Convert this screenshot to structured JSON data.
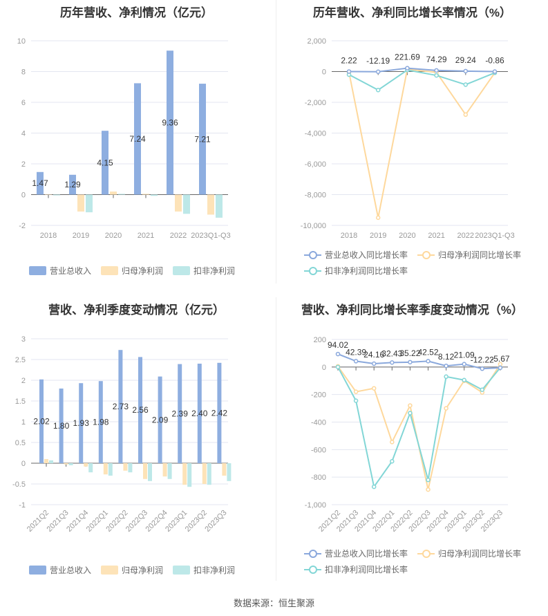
{
  "colors": {
    "revenue": "#8eaee0",
    "net": "#fde3b8",
    "deducted": "#bde8e8",
    "revenue_line": "#8aa8dc",
    "net_line": "#fed89c",
    "deducted_line": "#82d6d6"
  },
  "chart_data": [
    {
      "id": "annual",
      "type": "bar",
      "title": "历年营收、净利情况（亿元）",
      "categories": [
        "2018",
        "2019",
        "2020",
        "2021",
        "2022",
        "2023Q1-Q3"
      ],
      "ylim": [
        -2,
        10
      ],
      "yticks": [
        -2,
        0,
        2,
        4,
        6,
        8,
        10
      ],
      "series": [
        {
          "name": "营业总收入",
          "values": [
            1.47,
            1.29,
            4.15,
            7.24,
            9.36,
            7.21
          ],
          "labels": [
            "1.47",
            "1.29",
            "4.15",
            "7.24",
            "9.36",
            "7.21"
          ]
        },
        {
          "name": "归母净利润",
          "values": [
            0.02,
            -1.1,
            0.2,
            0.05,
            -1.1,
            -1.3
          ]
        },
        {
          "name": "扣非净利润",
          "values": [
            -0.05,
            -1.15,
            0.05,
            -0.08,
            -1.25,
            -1.5
          ]
        }
      ]
    },
    {
      "id": "annual_growth",
      "type": "line",
      "title": "历年营收、净利同比增长率情况（%）",
      "categories": [
        "2018",
        "2019",
        "2020",
        "2021",
        "2022",
        "2023Q1-Q3"
      ],
      "ylim": [
        -10000,
        2000
      ],
      "yticks": [
        -10000,
        -8000,
        -6000,
        -4000,
        -2000,
        0,
        2000
      ],
      "ytick_labels": [
        "-10,000",
        "-8,000",
        "-6,000",
        "-4,000",
        "-2,000",
        "0",
        "2,000"
      ],
      "series": [
        {
          "name": "营业总收入同比增长率",
          "values": [
            2.22,
            -12.19,
            221.69,
            74.29,
            29.24,
            -0.86
          ],
          "labels": [
            "2.22",
            "-12.19",
            "221.69",
            "74.29",
            "29.24",
            "-0.86"
          ]
        },
        {
          "name": "归母净利润同比增长率",
          "values": [
            -50,
            -9500,
            150,
            -50,
            -2800,
            -80
          ]
        },
        {
          "name": "扣非净利润同比增长率",
          "values": [
            -200,
            -1200,
            100,
            -250,
            -850,
            -80
          ]
        }
      ]
    },
    {
      "id": "quarterly",
      "type": "bar",
      "title": "营收、净利季度变动情况（亿元）",
      "categories": [
        "2021Q2",
        "2021Q3",
        "2021Q4",
        "2022Q1",
        "2022Q2",
        "2022Q3",
        "2022Q4",
        "2023Q1",
        "2023Q2",
        "2023Q3"
      ],
      "ylim": [
        -1,
        3
      ],
      "yticks": [
        -1,
        -0.5,
        0,
        0.5,
        1,
        1.5,
        2,
        2.5,
        3
      ],
      "ytick_labels": [
        "-1",
        "-0.5",
        "0",
        "0.5",
        "1",
        "1.5",
        "2",
        "2.5",
        "3"
      ],
      "series": [
        {
          "name": "营业总收入",
          "values": [
            2.02,
            1.8,
            1.93,
            1.98,
            2.73,
            2.56,
            2.09,
            2.39,
            2.4,
            2.42
          ],
          "labels": [
            "2.02",
            "1.80",
            "1.93",
            "1.98",
            "2.73",
            "2.56",
            "2.09",
            "2.39",
            "2.40",
            "2.42"
          ]
        },
        {
          "name": "归母净利润",
          "values": [
            0.1,
            -0.03,
            -0.08,
            -0.27,
            -0.18,
            -0.38,
            -0.32,
            -0.52,
            -0.5,
            -0.3
          ]
        },
        {
          "name": "扣非净利润",
          "values": [
            0.07,
            -0.05,
            -0.22,
            -0.3,
            -0.22,
            -0.43,
            -0.38,
            -0.57,
            -0.52,
            -0.43
          ]
        }
      ]
    },
    {
      "id": "quarterly_growth",
      "type": "line",
      "title": "营收、净利同比增长率季度变动情况（%）",
      "categories": [
        "2021Q2",
        "2021Q3",
        "2021Q4",
        "2022Q1",
        "2022Q2",
        "2022Q3",
        "2022Q4",
        "2023Q1",
        "2023Q2",
        "2023Q3"
      ],
      "ylim": [
        -1000,
        200
      ],
      "yticks": [
        -1000,
        -800,
        -600,
        -400,
        -200,
        0,
        200
      ],
      "ytick_labels": [
        "-1,000",
        "-800",
        "-600",
        "-400",
        "-200",
        "0",
        "200"
      ],
      "series": [
        {
          "name": "营业总收入同比增长率",
          "values": [
            94.02,
            42.39,
            24.16,
            32.43,
            35.22,
            42.52,
            8.12,
            21.09,
            -12.22,
            -5.67
          ],
          "labels": [
            "94.02",
            "42.39",
            "24.16",
            "32.43",
            "35.22",
            "42.52",
            "8.12",
            "21.09",
            "-12.22",
            "-5.67"
          ]
        },
        {
          "name": "归母净利润同比增长率",
          "values": [
            5,
            -180,
            -155,
            -545,
            -280,
            -890,
            -300,
            -100,
            -185,
            20
          ]
        },
        {
          "name": "扣非净利润同比增长率",
          "values": [
            0,
            -245,
            -870,
            -685,
            -335,
            -820,
            -70,
            -95,
            -165,
            -5
          ]
        }
      ]
    }
  ],
  "footer": {
    "source": "数据来源：恒生聚源"
  }
}
